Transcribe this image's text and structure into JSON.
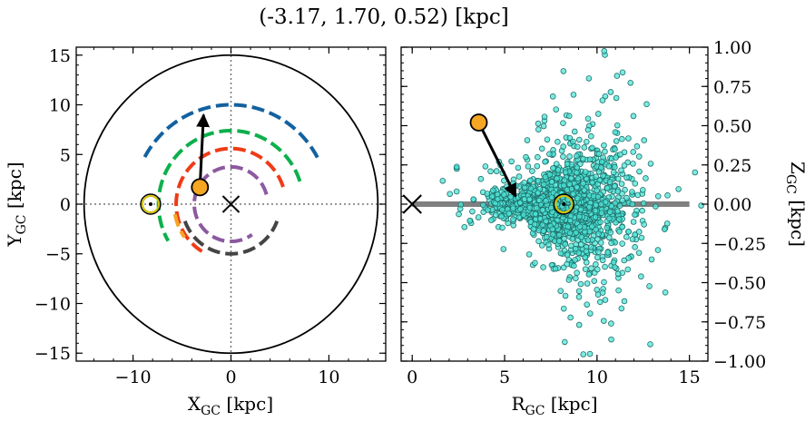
{
  "figure": {
    "title": "(-3.17, 1.70, 0.52) [kpc]"
  },
  "chart_data": [
    {
      "type": "scatter",
      "panel": "left",
      "xlabel": "X_GC [kpc]",
      "ylabel": "Y_GC [kpc]",
      "xlim": [
        -15.8,
        15.8
      ],
      "ylim": [
        -15.8,
        15.8
      ],
      "xticks": [
        -10,
        0,
        10
      ],
      "yticks": [
        -15,
        -10,
        -5,
        0,
        5,
        10,
        15
      ],
      "xtick_labels": [
        "−10",
        "0",
        "10"
      ],
      "ytick_labels": [
        "−15",
        "−10",
        "−5",
        "0",
        "5",
        "10",
        "15"
      ],
      "boundary_circle": {
        "center": [
          0,
          0
        ],
        "radius": 15,
        "color": "#000000"
      },
      "reference_lines": [
        {
          "axis": "x",
          "value": 0
        },
        {
          "axis": "y",
          "value": 0
        }
      ],
      "spiral_arms": [
        {
          "color": "#1261a0",
          "radius": 10.0,
          "theta_start_deg": 28,
          "theta_end_deg": 152
        },
        {
          "color": "#0cb04c",
          "radius": 7.4,
          "theta_start_deg": 18,
          "theta_end_deg": 210
        },
        {
          "color": "#ef3b16",
          "radius": 5.6,
          "theta_start_deg": 18,
          "theta_end_deg": 238
        },
        {
          "color": "#8c5aa0",
          "radius": 3.75,
          "theta_start_deg": 15,
          "theta_end_deg": 305
        },
        {
          "color": "#444444",
          "radius": 5.0,
          "theta_start_deg": 200,
          "theta_end_deg": 340
        },
        {
          "color": "#f5a623",
          "radius": 5.8,
          "theta_start_deg": 190,
          "theta_end_deg": 215
        }
      ],
      "galactic_center": {
        "x": 0,
        "y": 0,
        "marker": "x"
      },
      "sun": {
        "x": -8.2,
        "y": 0.0,
        "marker": "sun",
        "color": "#d4c10a"
      },
      "object": {
        "x": -3.17,
        "y": 1.7,
        "color": "#f5a623"
      },
      "motion_arrow": {
        "from": [
          -3.17,
          1.7
        ],
        "to": [
          -2.8,
          9.0
        ]
      }
    },
    {
      "type": "scatter",
      "panel": "right",
      "xlabel": "R_GC [kpc]",
      "ylabel": "Z_GC [kpc]",
      "xlim": [
        -0.6,
        16.0
      ],
      "ylim": [
        -1.0,
        1.0
      ],
      "xticks": [
        0,
        5,
        10,
        15
      ],
      "yticks": [
        -1.0,
        -0.75,
        -0.5,
        -0.25,
        0.0,
        0.25,
        0.5,
        0.75,
        1.0
      ],
      "xtick_labels": [
        "0",
        "5",
        "10",
        "15"
      ],
      "ytick_labels": [
        "−1.00",
        "−0.75",
        "−0.50",
        "−0.25",
        "0.00",
        "0.25",
        "0.50",
        "0.75",
        "1.00"
      ],
      "disk_line": {
        "x_range": [
          0,
          15
        ],
        "z": 0,
        "color": "#808080"
      },
      "star_cloud": {
        "color": "#4ee6d8",
        "edge_color": "#1f6f6a",
        "count": 1600,
        "center_r": 8.2,
        "r_spread": 1.9,
        "z_spread_base": 0.06,
        "r_min": 0.5,
        "r_max": 16.0
      },
      "galactic_center": {
        "r": 0,
        "z": 0,
        "marker": "x"
      },
      "sun": {
        "r": 8.2,
        "z": 0.0,
        "marker": "sun",
        "color": "#d4c10a"
      },
      "object": {
        "r": 3.6,
        "z": 0.52,
        "color": "#f5a623"
      },
      "motion_arrow": {
        "from": [
          3.6,
          0.52
        ],
        "to": [
          5.6,
          0.05
        ]
      }
    }
  ]
}
